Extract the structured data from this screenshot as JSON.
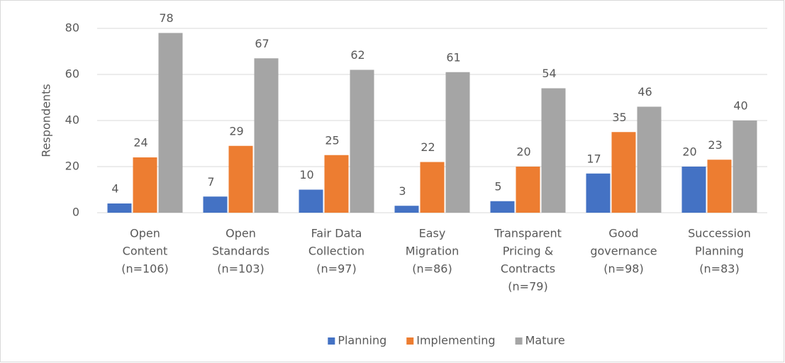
{
  "chart_data": {
    "type": "bar",
    "y_label": "Respondents",
    "categories": [
      [
        "Open",
        "Content",
        "(n=106)"
      ],
      [
        "Open",
        "Standards",
        "(n=103)"
      ],
      [
        "Fair Data",
        "Collection",
        "(n=97)"
      ],
      [
        "Easy",
        "Migration",
        "(n=86)"
      ],
      [
        "Transparent",
        "Pricing &",
        "Contracts",
        "(n=79)"
      ],
      [
        "Good",
        "governance",
        "(n=98)"
      ],
      [
        "Succession",
        "Planning",
        "(n=83)"
      ]
    ],
    "series": [
      {
        "name": "Planning",
        "color": "#4472c4",
        "values": [
          4,
          7,
          10,
          3,
          5,
          17,
          20
        ]
      },
      {
        "name": "Implementing",
        "color": "#ed7d31",
        "values": [
          24,
          29,
          25,
          22,
          20,
          35,
          23
        ]
      },
      {
        "name": "Mature",
        "color": "#a5a5a5",
        "values": [
          78,
          67,
          62,
          61,
          54,
          46,
          40
        ]
      }
    ],
    "ylim": [
      0,
      80
    ],
    "yticks": [
      0,
      20,
      40,
      60,
      80
    ],
    "grid": true,
    "legend": "bottom"
  }
}
